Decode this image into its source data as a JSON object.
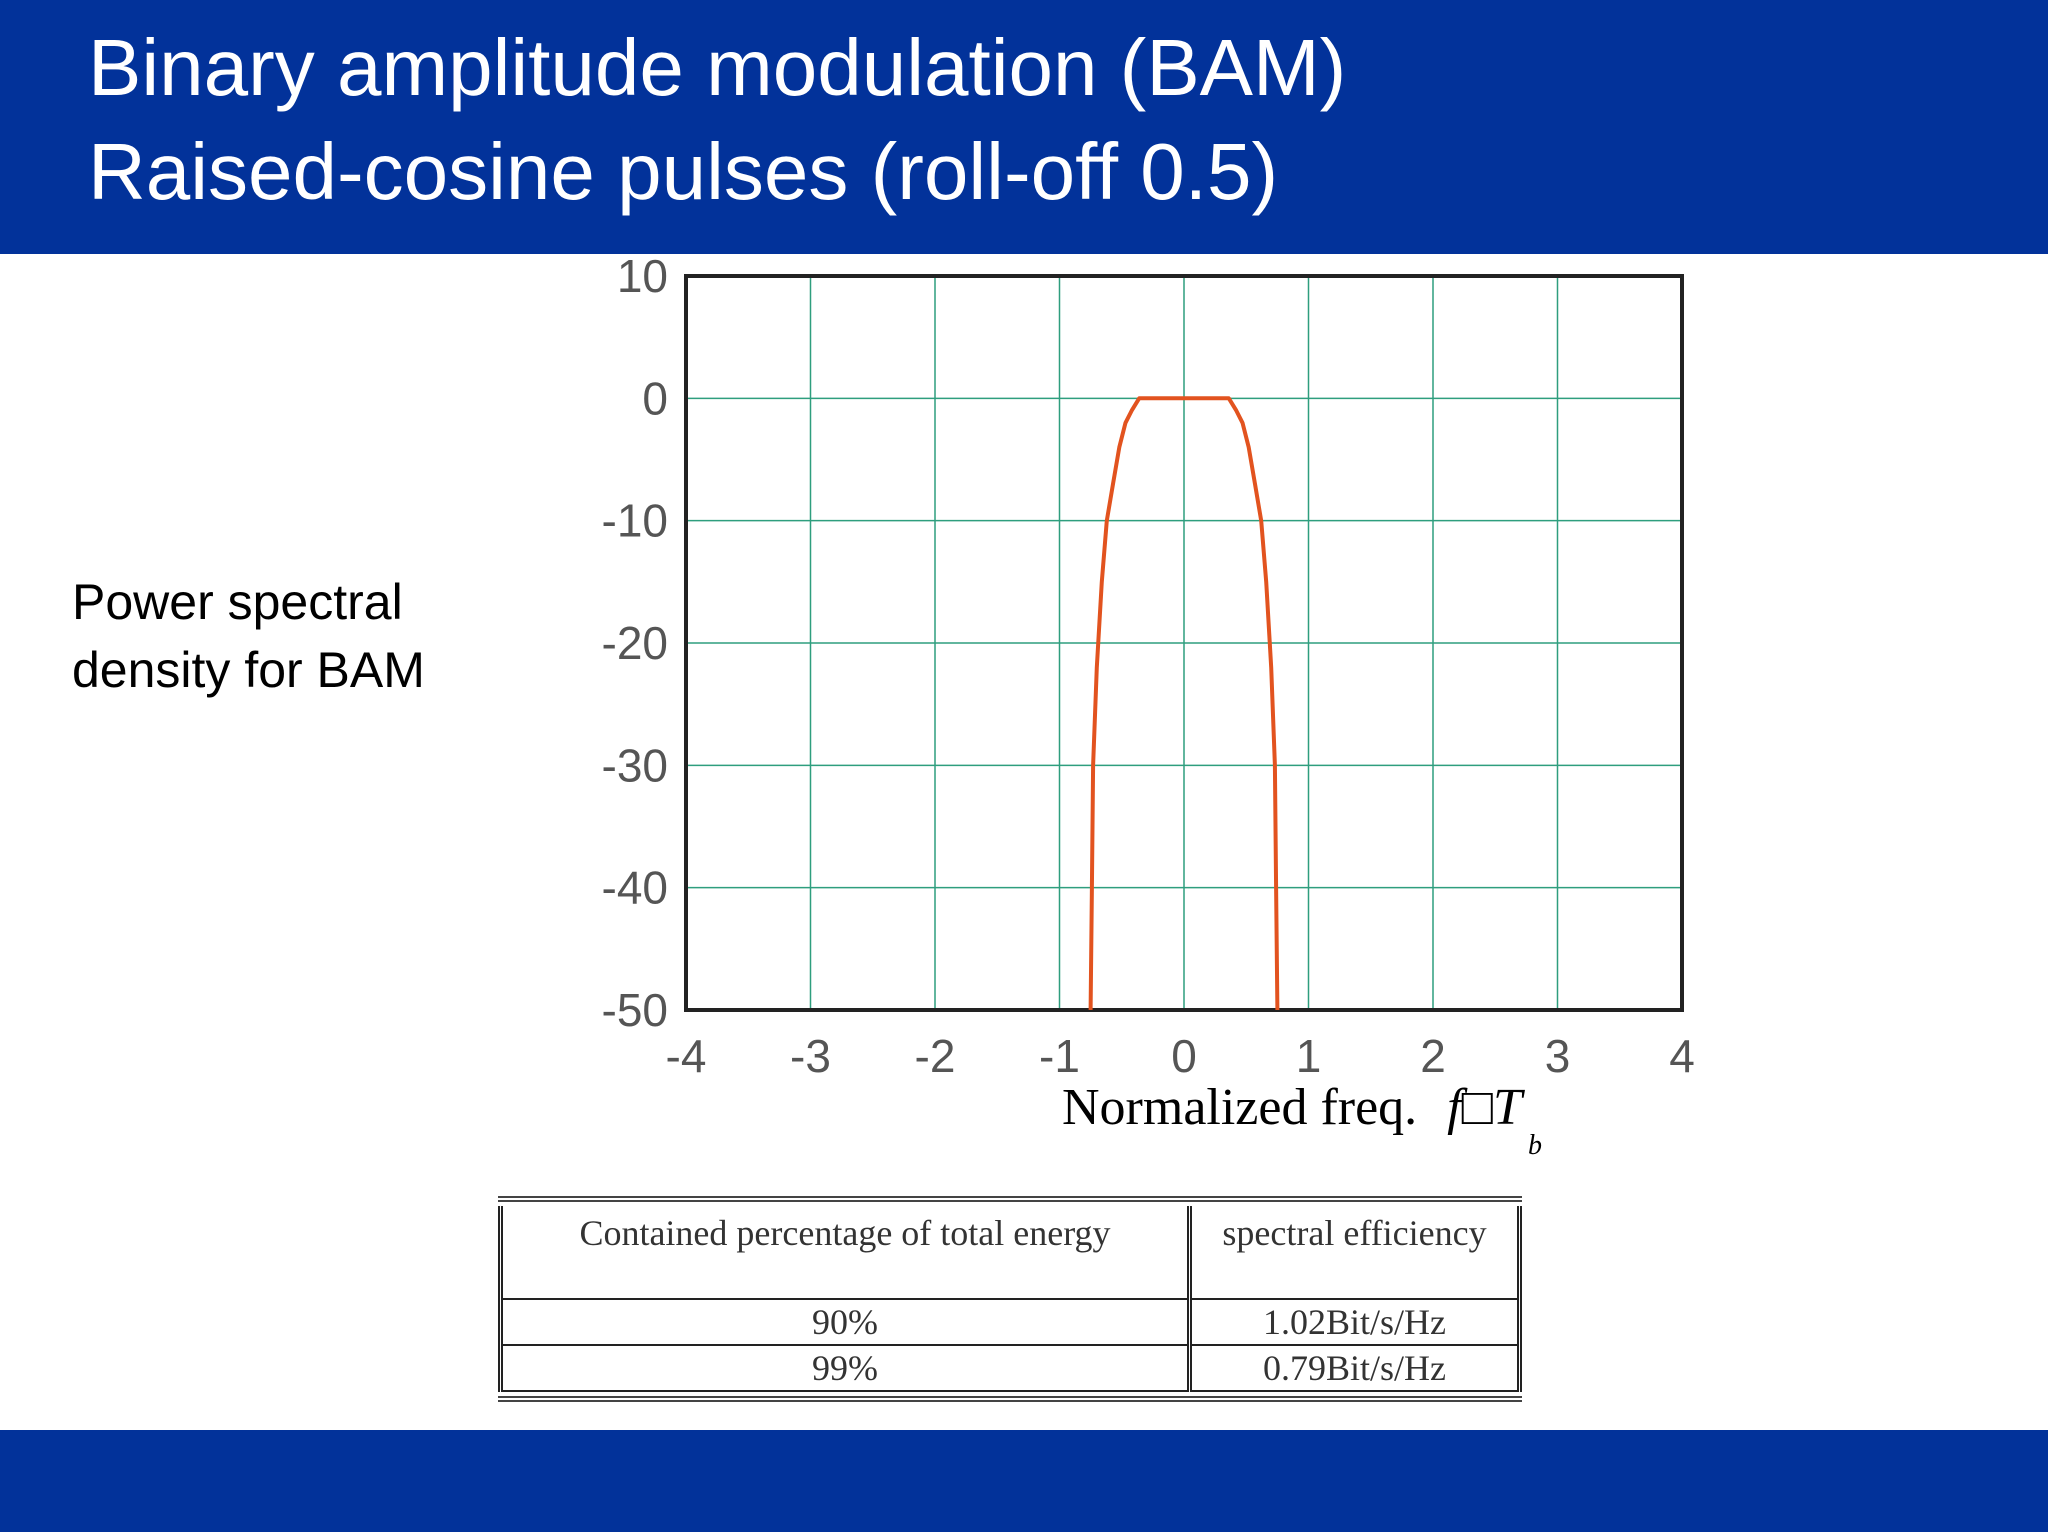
{
  "title": {
    "line1": "Binary amplitude modulation (BAM)",
    "line2": "Raised-cosine pulses (roll-off 0.5)"
  },
  "side_label": "Power spectral density for BAM",
  "xlabel": {
    "text": "Normalized freq.",
    "math": "f□T",
    "sub": "b"
  },
  "chart_data": {
    "type": "line",
    "title": "",
    "ylabel": "",
    "xlabel": "Normalized freq. f□T b",
    "xlim": [
      -4,
      4
    ],
    "ylim": [
      -50,
      10
    ],
    "xticks": [
      "-4",
      "-3",
      "-2",
      "-1",
      "0",
      "1",
      "2",
      "3",
      "4"
    ],
    "yticks": [
      "10",
      "0",
      "-10",
      "-20",
      "-30",
      "-40",
      "-50"
    ],
    "grid": true,
    "series": [
      {
        "color": "#e2531f",
        "x": [
          -0.75,
          -0.74,
          -0.73,
          -0.7,
          -0.66,
          -0.62,
          -0.57,
          -0.52,
          -0.47,
          -0.42,
          -0.36,
          -0.3,
          0.3,
          0.36,
          0.42,
          0.47,
          0.52,
          0.57,
          0.62,
          0.66,
          0.7,
          0.73,
          0.74,
          0.75
        ],
        "y": [
          -50,
          -40,
          -30,
          -22,
          -15,
          -10,
          -7,
          -4,
          -2,
          -1,
          0,
          0,
          0,
          0,
          -1,
          -2,
          -4,
          -7,
          -10,
          -15,
          -22,
          -30,
          -40,
          -50
        ]
      }
    ]
  },
  "table": {
    "headers": [
      "Contained percentage of total energy",
      "spectral efficiency"
    ],
    "rows": [
      [
        "90%",
        "1.02Bit/s/Hz"
      ],
      [
        "99%",
        "0.79Bit/s/Hz"
      ]
    ]
  },
  "colors": {
    "header_bg": "#02329a",
    "grid": "#2e9e7e",
    "curve": "#e2531f"
  }
}
